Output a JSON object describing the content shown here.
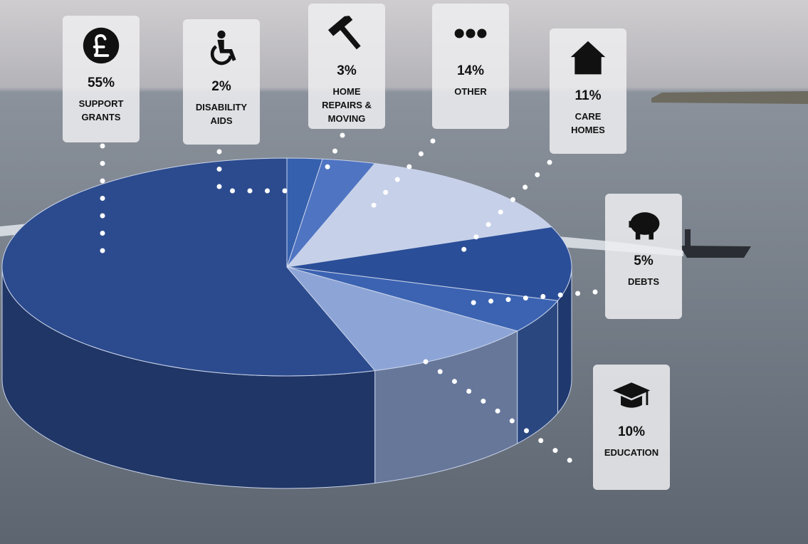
{
  "chart_data": {
    "type": "pie",
    "categories": [
      "DISABILITY AIDS",
      "HOME REPAIRS & MOVING",
      "OTHER",
      "CARE HOMES",
      "DEBTS",
      "EDUCATION",
      "SUPPORT GRANTS"
    ],
    "values": [
      2,
      3,
      14,
      11,
      5,
      10,
      55
    ],
    "value_labels": [
      "2%",
      "3%",
      "14%",
      "11%",
      "5%",
      "10%",
      "55%"
    ],
    "colors": [
      "#3560ad",
      "#4f74c2",
      "#c6d0e8",
      "#2b4e98",
      "#3b63b2",
      "#8da5d6",
      "#2c4b8e"
    ]
  }
}
